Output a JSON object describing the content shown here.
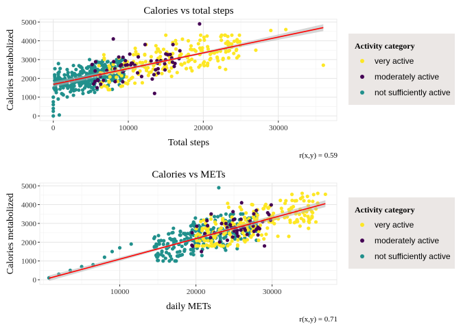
{
  "chart_data": [
    {
      "type": "scatter",
      "title": "Calories vs total steps",
      "xlabel": "Total steps",
      "ylabel": "Calories metabolized",
      "xlim": [
        -1800,
        37800
      ],
      "ylim": [
        -250,
        5150
      ],
      "xticks": [
        0,
        10000,
        20000,
        30000
      ],
      "yticks": [
        0,
        1000,
        2000,
        3000,
        4000,
        5000
      ],
      "grid": true,
      "legend": {
        "title": "Activity category",
        "position": "right",
        "entries": [
          {
            "label": "very active",
            "color": "#FDE725"
          },
          {
            "label": "moderately active",
            "color": "#440154"
          },
          {
            "label": "not sufficiently active",
            "color": "#21908C"
          }
        ]
      },
      "annotation": "r(x,y) = 0.59",
      "trend": {
        "x": [
          0,
          36000
        ],
        "y": [
          1680,
          4700
        ],
        "color": "#FF0000"
      },
      "clusters": [
        {
          "series": "not sufficiently active",
          "count": 320,
          "x": [
            0,
            9500
          ],
          "y": [
            900,
            3000
          ],
          "seed": 11
        },
        {
          "series": "very active",
          "count": 220,
          "x": [
            6000,
            25000
          ],
          "y": [
            1400,
            4300
          ],
          "seed": 23
        },
        {
          "series": "moderately active",
          "count": 55,
          "x": [
            5000,
            18000
          ],
          "y": [
            1500,
            3800
          ],
          "seed": 37
        }
      ],
      "series": [
        {
          "name": "not sufficiently active",
          "points": [
            [
              0,
              0
            ],
            [
              0,
              250
            ],
            [
              0,
              400
            ],
            [
              0,
              600
            ],
            [
              0,
              750
            ],
            [
              0,
              1000
            ],
            [
              100,
              1500
            ],
            [
              400,
              1700
            ],
            [
              800,
              50
            ],
            [
              200,
              2100
            ]
          ]
        },
        {
          "name": "very active",
          "points": [
            [
              36000,
              2700
            ],
            [
              29000,
              4550
            ],
            [
              31000,
              4600
            ],
            [
              27000,
              3500
            ],
            [
              20000,
              2800
            ],
            [
              18000,
              4000
            ],
            [
              23000,
              3400
            ],
            [
              15000,
              4300
            ]
          ]
        },
        {
          "name": "moderately active",
          "points": [
            [
              8000,
              4100
            ],
            [
              13500,
              1200
            ],
            [
              15000,
              3300
            ],
            [
              19500,
              4900
            ]
          ]
        }
      ]
    },
    {
      "type": "scatter",
      "title": "Calories vs METs",
      "xlabel": "daily METs",
      "ylabel": "Calories metabolized",
      "xlim": [
        -500,
        38500
      ],
      "ylim": [
        -250,
        5150
      ],
      "xticks": [
        10000,
        20000,
        30000
      ],
      "yticks": [
        0,
        1000,
        2000,
        3000,
        4000,
        5000
      ],
      "grid": true,
      "legend": {
        "title": "Activity category",
        "position": "right",
        "entries": [
          {
            "label": "very active",
            "color": "#FDE725"
          },
          {
            "label": "moderately active",
            "color": "#440154"
          },
          {
            "label": "not sufficiently active",
            "color": "#21908C"
          }
        ]
      },
      "annotation": "r(x,y) = 0.71",
      "trend": {
        "x": [
          700,
          37000
        ],
        "y": [
          80,
          4050
        ],
        "color": "#FF0000"
      },
      "clusters": [
        {
          "series": "not sufficiently active",
          "count": 280,
          "x": [
            14500,
            28000
          ],
          "y": [
            1000,
            3500
          ],
          "seed": 51
        },
        {
          "series": "very active",
          "count": 220,
          "x": [
            20000,
            36000
          ],
          "y": [
            1800,
            4600
          ],
          "seed": 63
        },
        {
          "series": "moderately active",
          "count": 50,
          "x": [
            19000,
            30000
          ],
          "y": [
            1500,
            4000
          ],
          "seed": 77
        }
      ],
      "series": [
        {
          "name": "not sufficiently active",
          "points": [
            [
              700,
              100
            ],
            [
              2000,
              300
            ],
            [
              3500,
              500
            ],
            [
              5000,
              700
            ],
            [
              6500,
              800
            ],
            [
              8000,
              1200
            ],
            [
              9000,
              1500
            ],
            [
              10000,
              1700
            ],
            [
              11500,
              1900
            ],
            [
              23000,
              4900
            ],
            [
              14500,
              2200
            ],
            [
              15000,
              1400
            ]
          ]
        },
        {
          "name": "very active",
          "points": [
            [
              37000,
              4550
            ],
            [
              36000,
              4600
            ],
            [
              34000,
              4400
            ],
            [
              33000,
              4200
            ],
            [
              30000,
              3400
            ]
          ]
        },
        {
          "name": "moderately active",
          "points": [
            [
              26000,
              4100
            ],
            [
              22000,
              3500
            ],
            [
              29000,
              1800
            ]
          ]
        }
      ]
    }
  ]
}
